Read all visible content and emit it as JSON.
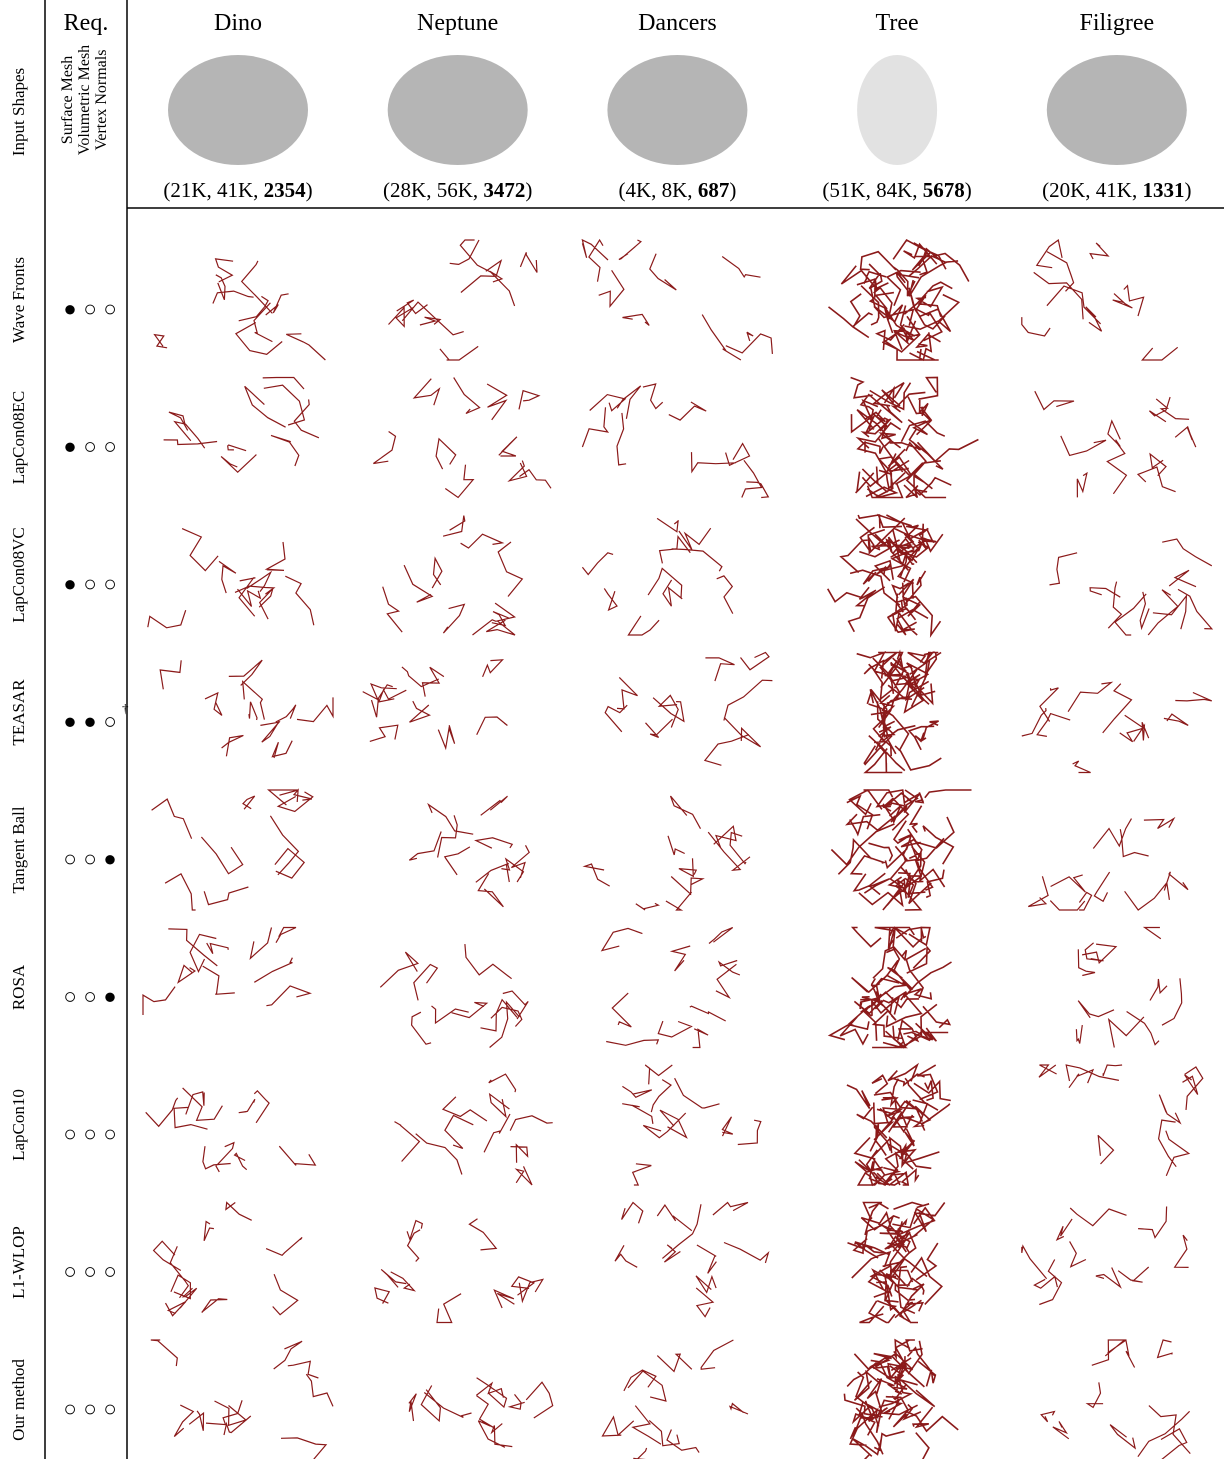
{
  "header": {
    "input_shapes": "Input Shapes",
    "req": "Req.",
    "req_columns": [
      "Surface Mesh",
      "Volumetric Mesh",
      "Vertex Normals"
    ]
  },
  "columns": [
    {
      "name": "Dino",
      "prefix": "(21K, 41K, ",
      "bold": "2354",
      "suffix": ")"
    },
    {
      "name": "Neptune",
      "prefix": "(28K, 56K, ",
      "bold": "3472",
      "suffix": ")"
    },
    {
      "name": "Dancers",
      "prefix": "(4K, 8K, ",
      "bold": "687",
      "suffix": ")"
    },
    {
      "name": "Tree",
      "prefix": "(51K, 84K, ",
      "bold": "5678",
      "suffix": ")"
    },
    {
      "name": "Filigree",
      "prefix": "(20K, 41K, ",
      "bold": "1331",
      "suffix": ")"
    }
  ],
  "rows": [
    {
      "name": "Wave Fronts",
      "req": [
        "●",
        "○",
        "○"
      ],
      "req_colors": [
        "#000",
        "#000",
        "#000"
      ]
    },
    {
      "name": "LapCon08EC",
      "req": [
        "●",
        "○",
        "○"
      ],
      "req_colors": [
        "#000",
        "#000",
        "#000"
      ]
    },
    {
      "name": "LapCon08VC",
      "req": [
        "●",
        "○",
        "○"
      ],
      "req_colors": [
        "#000",
        "#000",
        "#000"
      ]
    },
    {
      "name": "TEASAR",
      "req": [
        "●",
        "●",
        "○"
      ],
      "req_colors": [
        "#808080",
        "#808080",
        "#000"
      ],
      "note": "†"
    },
    {
      "name": "Tangent Ball",
      "req": [
        "○",
        "○",
        "●"
      ],
      "req_colors": [
        "#000",
        "#000",
        "#000"
      ]
    },
    {
      "name": "ROSA",
      "req": [
        "○",
        "○",
        "●"
      ],
      "req_colors": [
        "#000",
        "#000",
        "#000"
      ]
    },
    {
      "name": "LapCon10",
      "req": [
        "○",
        "○",
        "○"
      ],
      "req_colors": [
        "#000",
        "#000",
        "#000"
      ]
    },
    {
      "name": "L1-WLOP",
      "req": [
        "○",
        "○",
        "○"
      ],
      "req_colors": [
        "#000",
        "#000",
        "#000"
      ]
    },
    {
      "name": "Our method",
      "req": [
        "○",
        "○",
        "○"
      ],
      "req_colors": [
        "#000",
        "#000",
        "#000"
      ]
    }
  ]
}
